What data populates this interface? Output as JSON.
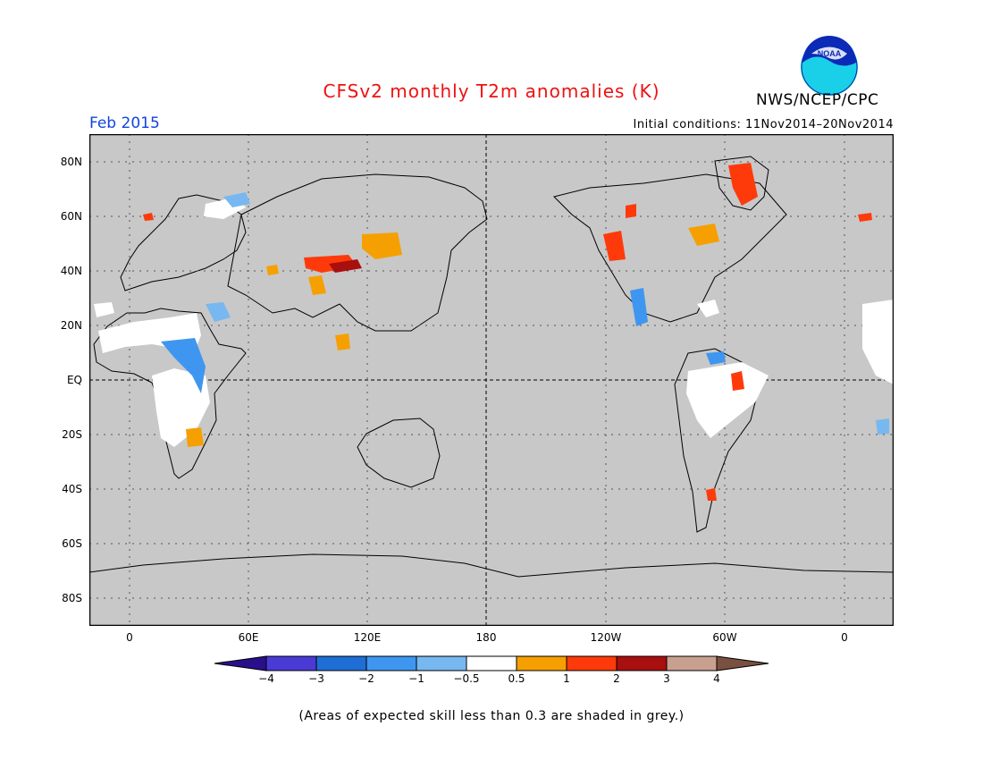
{
  "title": "CFSv2 monthly T2m anomalies (K)",
  "agency": "NWS/NCEP/CPC",
  "logo_text": "NOAA",
  "period": "Feb 2015",
  "initial_conditions": "Initial conditions: 11Nov2014–20Nov2014",
  "footnote": "(Areas of expected skill less than 0.3 are shaded in grey.)",
  "map": {
    "projection": "equirectangular",
    "longitude_range": [
      -20,
      380
    ],
    "latitude_range": [
      -90,
      90
    ],
    "background_color": "#c8c8c8",
    "grid": "dotted",
    "reference_lines": [
      "equator",
      "180"
    ],
    "lat_labels": [
      "80N",
      "60N",
      "40N",
      "20N",
      "EQ",
      "20S",
      "40S",
      "60S",
      "80S"
    ],
    "lon_labels": [
      "0",
      "60E",
      "120E",
      "180",
      "120W",
      "60W",
      "0"
    ]
  },
  "colorbar": {
    "labels": [
      "−4",
      "−3",
      "−2",
      "−1",
      "−0.5",
      "0.5",
      "1",
      "2",
      "3",
      "4"
    ],
    "colors": [
      "#2a0f8c",
      "#4a3ad6",
      "#1f6ed6",
      "#3f96f0",
      "#78b8f0",
      "#ffffff",
      "#f5a000",
      "#ff3a0a",
      "#a80f0f",
      "#c8a090",
      "#7a5040"
    ]
  },
  "chart_data": {
    "type": "heatmap",
    "title": "CFSv2 monthly T2m anomalies (K)",
    "units": "K",
    "valid_month": "Feb 2015",
    "color_scale_bounds": [
      -4,
      -3,
      -2,
      -1,
      -0.5,
      0.5,
      1,
      2,
      3,
      4
    ]
  }
}
